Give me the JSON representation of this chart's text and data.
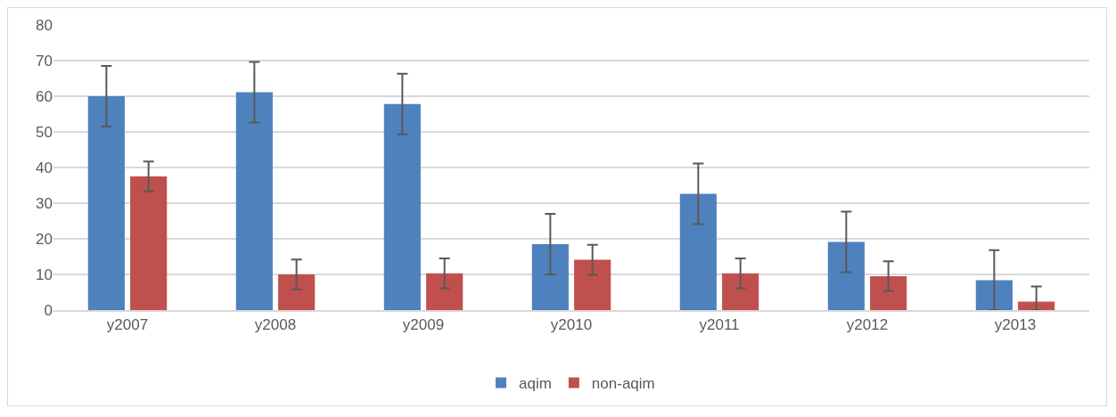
{
  "chart_data": {
    "type": "bar",
    "categories": [
      "y2007",
      "y2008",
      "y2009",
      "y2010",
      "y2011",
      "y2012",
      "y2013"
    ],
    "series": [
      {
        "name": "aqim",
        "color": "#4f81bd",
        "values": [
          60,
          61.1,
          57.8,
          18.5,
          32.6,
          19.1,
          8.4
        ],
        "errors": [
          8.5,
          8.5,
          8.5,
          8.5,
          8.5,
          8.5,
          8.4
        ]
      },
      {
        "name": "non-aqim",
        "color": "#c0504d",
        "values": [
          37.5,
          10,
          10.3,
          14.1,
          10.3,
          9.5,
          2.4
        ],
        "errors": [
          4.2,
          4.2,
          4.2,
          4.2,
          4.2,
          4.2,
          [
            0,
            6.6
          ]
        ]
      }
    ],
    "ylim": [
      0,
      80
    ],
    "yticks": [
      0,
      10,
      20,
      30,
      40,
      50,
      60,
      70,
      80
    ],
    "grid": "y",
    "legend": "bottom"
  }
}
